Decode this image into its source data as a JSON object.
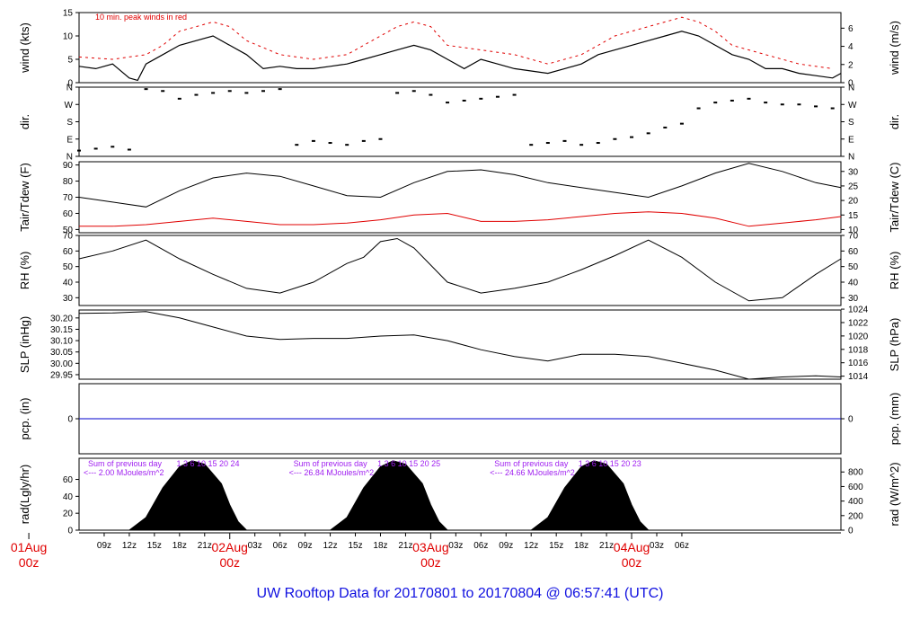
{
  "title": "UW Rooftop Data for 20170801  to  20170804 @ 06:57:41  (UTC)",
  "wind_note": "10 min. peak winds in red",
  "colors": {
    "black": "#000000",
    "red": "#e00000",
    "blue": "#0000cc",
    "purple": "#a020f0",
    "title": "#1010e0"
  },
  "x_ticks": [
    "09z",
    "12z",
    "15z",
    "18z",
    "21z",
    "03z",
    "06z",
    "09z",
    "12z",
    "15z",
    "18z",
    "21z",
    "03z",
    "06z",
    "09z",
    "12z",
    "15z",
    "18z",
    "21z",
    "03z",
    "06z"
  ],
  "day_labels": [
    {
      "date": "01Aug",
      "hour": "00z",
      "hour_offset": 0
    },
    {
      "date": "02Aug",
      "hour": "00z",
      "hour_offset": 24
    },
    {
      "date": "03Aug",
      "hour": "00z",
      "hour_offset": 48
    },
    {
      "date": "04Aug",
      "hour": "00z",
      "hour_offset": 72
    }
  ],
  "solar_annotations": [
    {
      "title": "Sum of previous day",
      "value": "<--- 2.00 MJoules/m^2",
      "hours": "1 3 6 10 15 20 24"
    },
    {
      "title": "Sum of previous day",
      "value": "<--- 26.84 MJoules/m^2",
      "hours": "1 3 6 10 15 20 25"
    },
    {
      "title": "Sum of previous day",
      "value": "<--- 24.66 MJoules/m^2",
      "hours": "1 3 6 10 15 20 23"
    }
  ],
  "chart_data": [
    {
      "type": "line",
      "id": "wind",
      "ylabel_left": "wind (kts)",
      "ylabel_right": "wind (m/s)",
      "ylim": [
        0,
        15
      ],
      "y_ticks_left": [
        "0",
        "5",
        "10",
        "15"
      ],
      "y_ticks_right": [
        "0",
        "2",
        "4",
        "6"
      ],
      "series": [
        {
          "name": "wind",
          "color": "#000000",
          "x": [
            6,
            8,
            10,
            12,
            13,
            14,
            16,
            18,
            20,
            22,
            24,
            26,
            28,
            30,
            32,
            34,
            36,
            38,
            40,
            42,
            44,
            46,
            48,
            50,
            52,
            54,
            56,
            58,
            60,
            62,
            64,
            66,
            68,
            70,
            72,
            74,
            76,
            78,
            80,
            82,
            84,
            86,
            88,
            90,
            92,
            94,
            96,
            97
          ],
          "y": [
            3.5,
            3,
            4,
            1,
            0.5,
            4,
            6,
            8,
            9,
            10,
            8,
            6,
            3,
            3.5,
            3,
            3,
            3.5,
            4,
            5,
            6,
            7,
            8,
            7,
            5,
            3,
            5,
            4,
            3,
            2.5,
            2,
            3,
            4,
            6,
            7,
            8,
            9,
            10,
            11,
            10,
            8,
            6,
            5,
            3,
            3,
            2,
            1.5,
            1,
            2
          ]
        },
        {
          "name": "10 min. peak winds in red",
          "color": "#e00000",
          "x": [
            6,
            10,
            14,
            16,
            18,
            20,
            22,
            24,
            26,
            30,
            34,
            38,
            40,
            42,
            44,
            46,
            48,
            50,
            54,
            58,
            62,
            66,
            68,
            70,
            72,
            74,
            76,
            78,
            80,
            82,
            84,
            88,
            92,
            96
          ],
          "y": [
            5.5,
            5,
            6,
            8,
            11,
            12,
            13,
            12,
            9,
            6,
            5,
            6,
            8,
            10,
            12,
            13,
            12,
            8,
            7,
            6,
            4,
            6,
            8,
            10,
            11,
            12,
            13,
            14,
            13,
            11,
            8,
            6,
            4,
            3
          ]
        }
      ]
    },
    {
      "type": "scatter",
      "id": "dir",
      "ylabel_left": "dir.",
      "ylabel_right": "dir.",
      "ylim": [
        0,
        360
      ],
      "y_ticks_left": [
        "N",
        "E",
        "S",
        "W",
        "N"
      ],
      "y_ticks_right": [
        "N",
        "E",
        "S",
        "W",
        "N"
      ],
      "series": [
        {
          "name": "direction",
          "color": "#000000",
          "x": [
            6,
            8,
            10,
            12,
            14,
            16,
            18,
            20,
            22,
            24,
            26,
            28,
            30,
            32,
            34,
            36,
            38,
            40,
            42,
            44,
            46,
            48,
            50,
            52,
            54,
            56,
            58,
            60,
            62,
            64,
            66,
            68,
            70,
            72,
            74,
            76,
            78,
            80,
            82,
            84,
            86,
            88,
            90,
            92,
            94,
            96
          ],
          "y": [
            30,
            40,
            50,
            35,
            350,
            340,
            300,
            320,
            330,
            340,
            330,
            340,
            350,
            60,
            80,
            70,
            60,
            80,
            90,
            330,
            340,
            320,
            280,
            290,
            300,
            310,
            320,
            60,
            70,
            80,
            60,
            70,
            90,
            100,
            120,
            150,
            170,
            250,
            280,
            290,
            300,
            280,
            270,
            270,
            260,
            250
          ]
        }
      ]
    },
    {
      "type": "line",
      "id": "temp",
      "ylabel_left": "Tair/Tdew (F)",
      "ylabel_right": "Tair/Tdew (C)",
      "ylim": [
        48,
        92
      ],
      "y_ticks_left": [
        "50",
        "60",
        "70",
        "80",
        "90"
      ],
      "y_ticks_right": [
        "10",
        "15",
        "20",
        "25",
        "30"
      ],
      "series": [
        {
          "name": "Tair",
          "color": "#000000",
          "x": [
            6,
            10,
            14,
            18,
            22,
            26,
            30,
            34,
            38,
            42,
            46,
            50,
            54,
            58,
            62,
            66,
            70,
            74,
            78,
            82,
            86,
            90,
            94,
            97
          ],
          "y": [
            70,
            67,
            64,
            74,
            82,
            85,
            83,
            77,
            71,
            70,
            79,
            86,
            87,
            84,
            79,
            76,
            73,
            70,
            77,
            85,
            91,
            86,
            79,
            76
          ]
        },
        {
          "name": "Tdew",
          "color": "#e00000",
          "x": [
            6,
            10,
            14,
            18,
            22,
            26,
            30,
            34,
            38,
            42,
            46,
            50,
            54,
            58,
            62,
            66,
            70,
            74,
            78,
            82,
            86,
            90,
            94,
            97
          ],
          "y": [
            52,
            52,
            53,
            55,
            57,
            55,
            53,
            53,
            54,
            56,
            59,
            60,
            55,
            55,
            56,
            58,
            60,
            61,
            60,
            57,
            52,
            54,
            56,
            58
          ]
        }
      ]
    },
    {
      "type": "line",
      "id": "rh",
      "ylabel_left": "RH (%)",
      "ylabel_right": "RH (%)",
      "ylim": [
        25,
        70
      ],
      "y_ticks_left": [
        "30",
        "40",
        "50",
        "60",
        "70"
      ],
      "y_ticks_right": [
        "30",
        "40",
        "50",
        "60",
        "70"
      ],
      "series": [
        {
          "name": "RH",
          "color": "#000000",
          "x": [
            6,
            10,
            14,
            18,
            22,
            26,
            30,
            34,
            38,
            40,
            42,
            44,
            46,
            50,
            54,
            58,
            62,
            66,
            70,
            74,
            78,
            82,
            86,
            90,
            94,
            97
          ],
          "y": [
            55,
            60,
            67,
            55,
            45,
            36,
            33,
            40,
            52,
            56,
            66,
            68,
            62,
            40,
            33,
            36,
            40,
            48,
            57,
            67,
            56,
            40,
            28,
            30,
            45,
            55
          ]
        }
      ]
    },
    {
      "type": "line",
      "id": "slp",
      "ylabel_left": "SLP (inHg)",
      "ylabel_right": "SLP (hPa)",
      "ylim": [
        29.93,
        30.235
      ],
      "y_ticks_left": [
        "29.95",
        "30.00",
        "30.05",
        "30.10",
        "30.15",
        "30.20"
      ],
      "y_ticks_right": [
        "1014",
        "1016",
        "1018",
        "1020",
        "1022",
        "1024"
      ],
      "series": [
        {
          "name": "SLP",
          "color": "#000000",
          "x": [
            6,
            10,
            14,
            18,
            22,
            26,
            30,
            34,
            38,
            42,
            46,
            50,
            54,
            58,
            62,
            66,
            70,
            74,
            78,
            82,
            86,
            90,
            94,
            97
          ],
          "y": [
            30.22,
            30.222,
            30.228,
            30.2,
            30.16,
            30.12,
            30.105,
            30.11,
            30.11,
            30.12,
            30.125,
            30.1,
            30.06,
            30.03,
            30.01,
            30.04,
            30.04,
            30.03,
            30.0,
            29.97,
            29.93,
            29.94,
            29.945,
            29.94
          ]
        }
      ]
    },
    {
      "type": "line",
      "id": "pcp",
      "ylabel_left": "pcp. (in)",
      "ylabel_right": "pcp. (mm)",
      "ylim": [
        -1,
        1
      ],
      "y_ticks_left": [
        "0"
      ],
      "y_ticks_right": [
        "0"
      ],
      "series": [
        {
          "name": "pcp",
          "color": "#0000cc",
          "x": [
            6,
            97
          ],
          "y": [
            0,
            0
          ]
        }
      ]
    },
    {
      "type": "area",
      "id": "rad",
      "ylabel_left": "rad(Lgly/hr)",
      "ylabel_right": "rad (W/m^2)",
      "ylim": [
        0,
        85
      ],
      "y_ticks_left": [
        "0",
        "20",
        "40",
        "60"
      ],
      "y_ticks_right": [
        "0",
        "200",
        "400",
        "600",
        "800"
      ],
      "series": [
        {
          "name": "radiation",
          "color": "#000000",
          "x": [
            6,
            12,
            14,
            16,
            18,
            19.5,
            21,
            23,
            24,
            25,
            26,
            36,
            38,
            40,
            42,
            43.5,
            45,
            47,
            48,
            49,
            50,
            60,
            62,
            64,
            66,
            67.5,
            69,
            71,
            72,
            73,
            74,
            97
          ],
          "y": [
            0,
            0,
            15,
            50,
            75,
            82,
            78,
            55,
            30,
            10,
            0,
            0,
            15,
            50,
            75,
            82,
            78,
            55,
            30,
            10,
            0,
            0,
            15,
            50,
            75,
            82,
            78,
            55,
            30,
            10,
            0,
            0
          ]
        }
      ]
    }
  ]
}
